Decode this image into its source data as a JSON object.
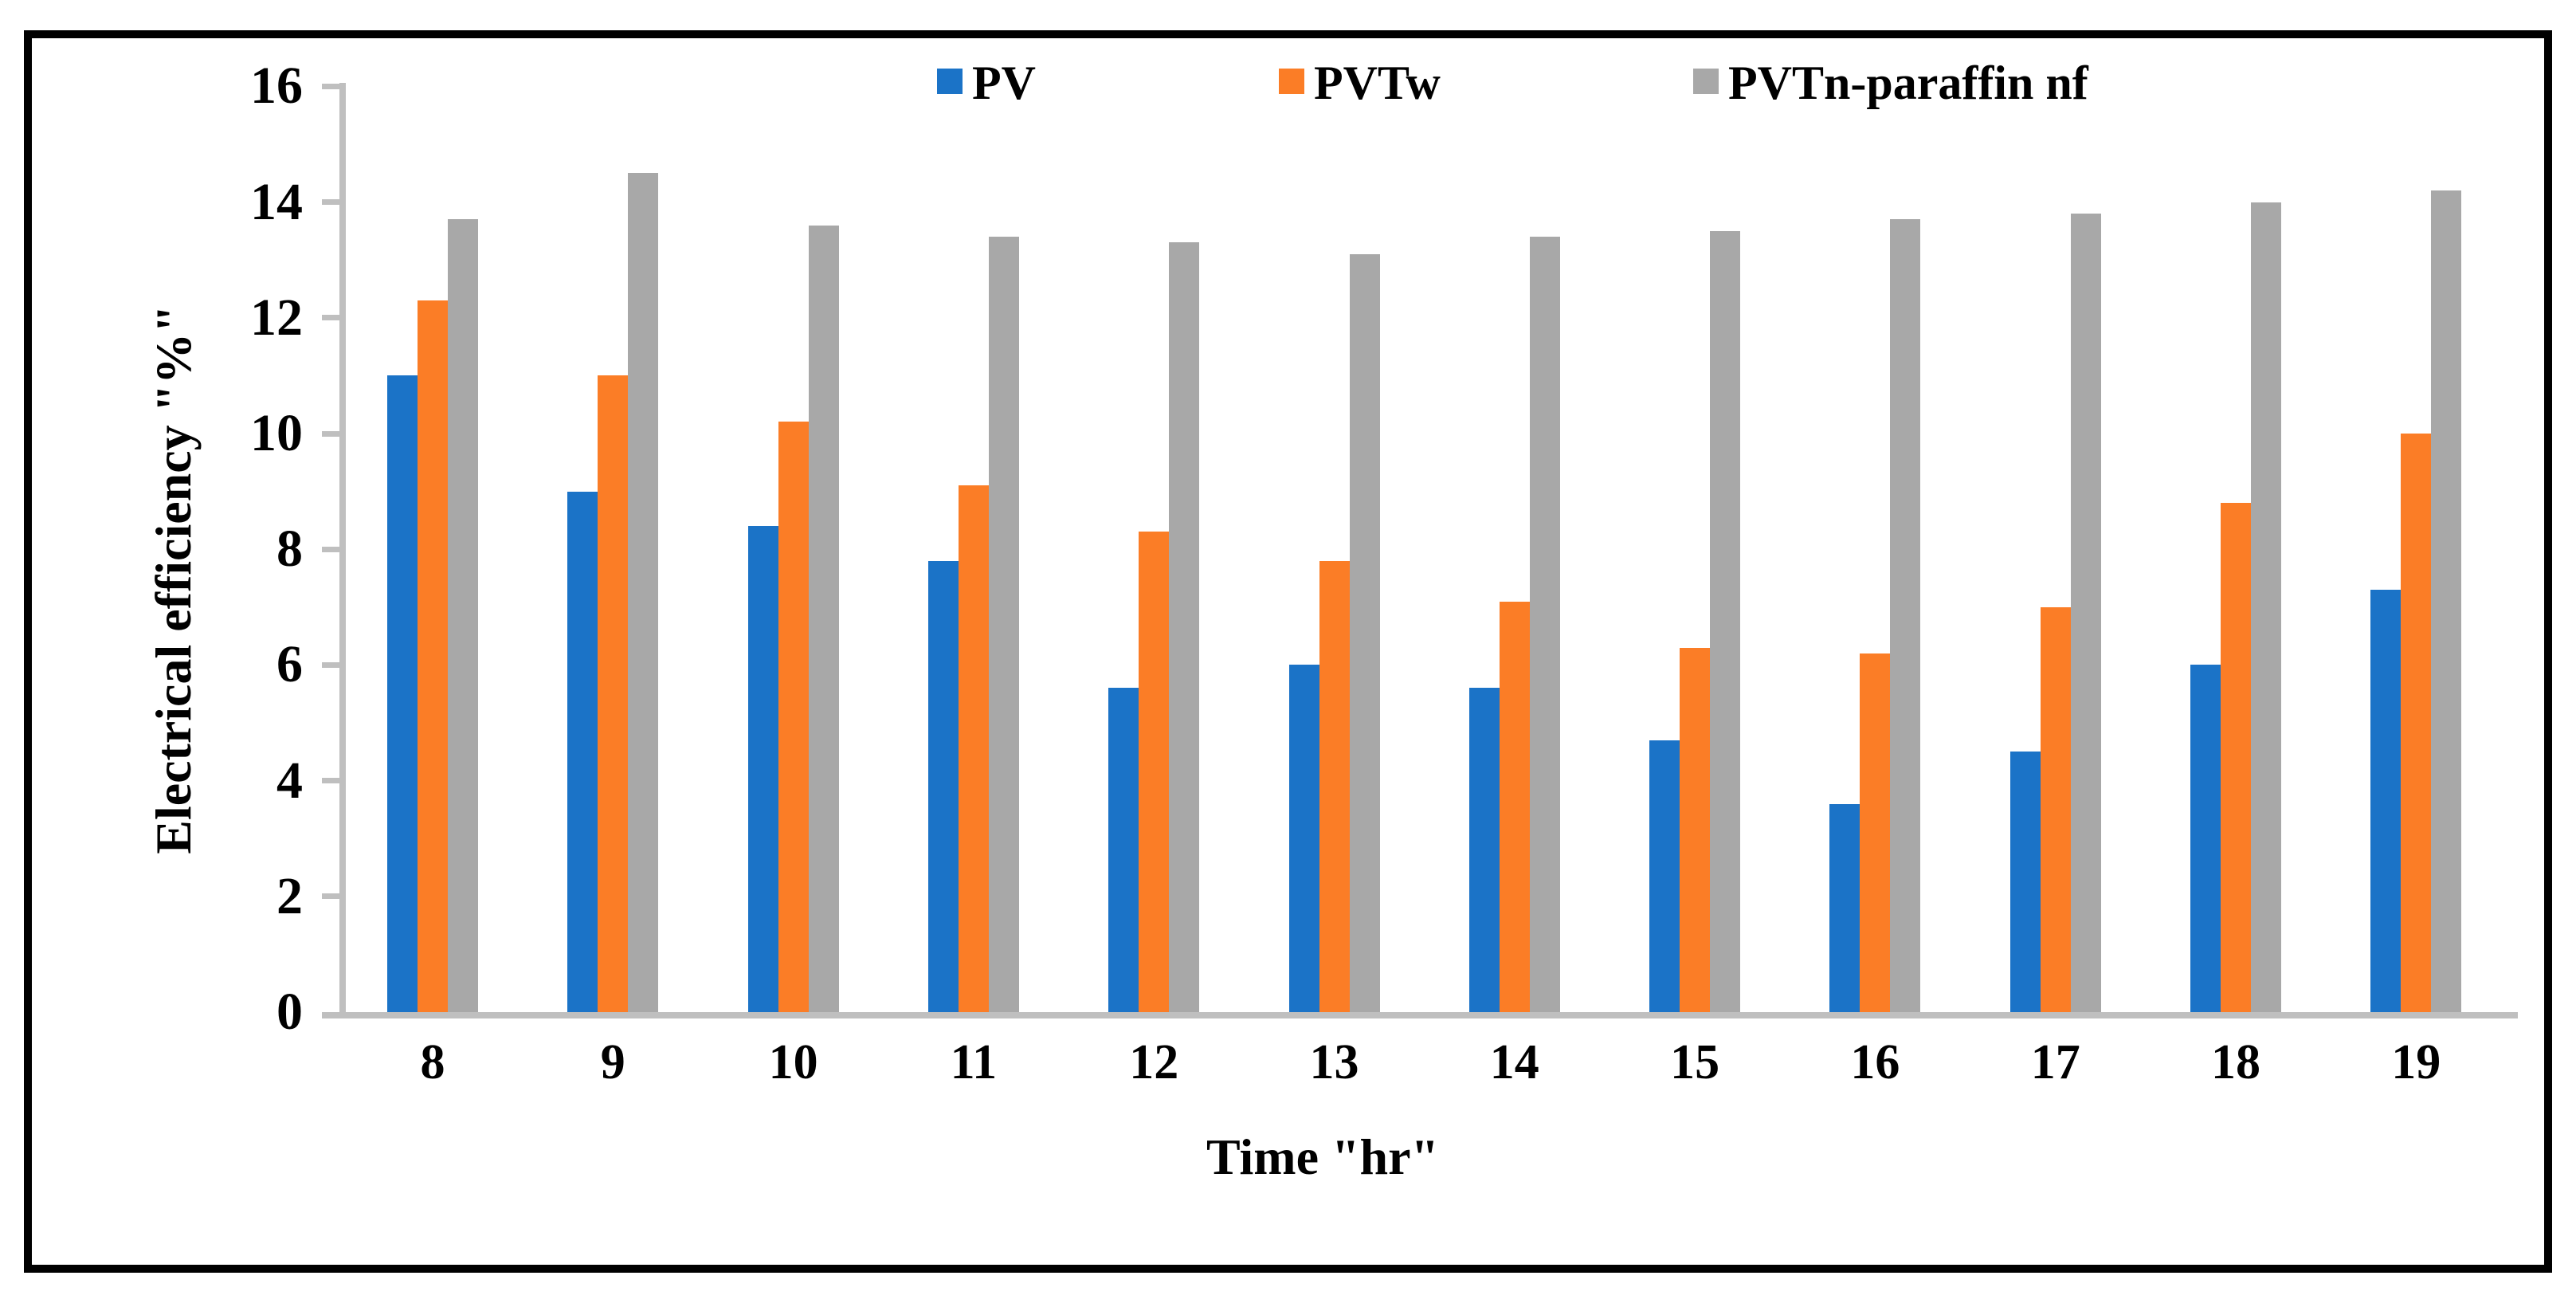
{
  "chart_data": {
    "type": "bar",
    "title": "",
    "categories": [
      "8",
      "9",
      "10",
      "11",
      "12",
      "13",
      "14",
      "15",
      "16",
      "17",
      "18",
      "19"
    ],
    "series": [
      {
        "name": "PV",
        "color": "#1B73C7",
        "values": [
          11,
          9,
          8.4,
          7.8,
          5.6,
          6,
          5.6,
          4.7,
          3.6,
          4.5,
          6,
          7.3
        ]
      },
      {
        "name": "PVTw",
        "color": "#FB7D26",
        "values": [
          12.3,
          11,
          10.2,
          9.1,
          8.3,
          7.8,
          7.1,
          6.3,
          6.2,
          7,
          8.8,
          10
        ]
      },
      {
        "name": "PVTn-paraffin nf",
        "color": "#A8A8A8",
        "values": [
          13.7,
          14.5,
          13.6,
          13.4,
          13.3,
          13.1,
          13.4,
          13.5,
          13.7,
          13.8,
          14,
          14.2
        ]
      }
    ],
    "xlabel": "Time \"hr\"",
    "ylabel": "Electrical efficiency \"%\"",
    "ylim": [
      0,
      16
    ],
    "yticks": [
      0,
      2,
      4,
      6,
      8,
      10,
      12,
      14,
      16
    ],
    "grid": false,
    "legend_position": "top",
    "axis_color": "#BFBFBF",
    "text_color": "#000000",
    "frame_color": "#000000"
  }
}
